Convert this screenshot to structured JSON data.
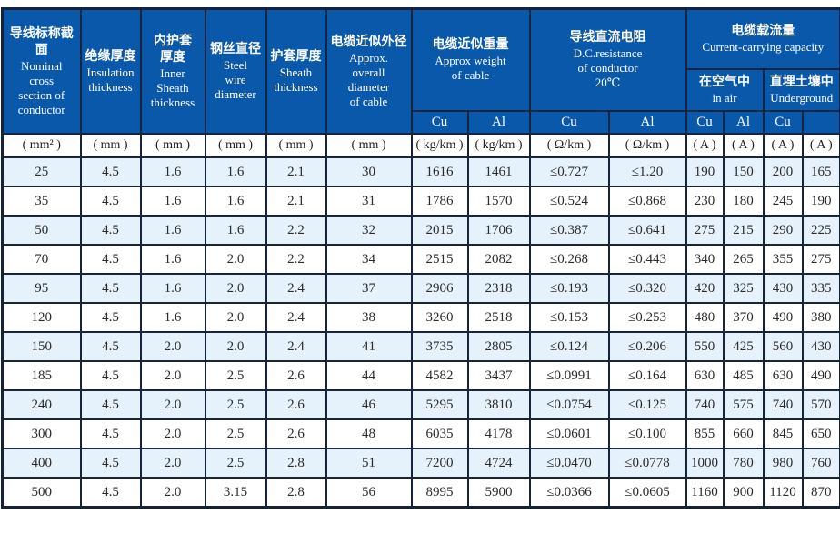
{
  "table": {
    "columns": [
      {
        "zh": "导线标称截面",
        "en": "Nominal\ncross\nsection of\nconductor"
      },
      {
        "zh": "绝缘厚度",
        "en": "Insulation\nthickness"
      },
      {
        "zh": "内护套\n厚度",
        "en": "Inner\nSheath\nthickness"
      },
      {
        "zh": "钢丝直径",
        "en": "Steel\nwire\ndiameter"
      },
      {
        "zh": "护套厚度",
        "en": "Sheath\nthickness"
      },
      {
        "zh": "电缆近似外径",
        "en": "Approx.\noverall\ndiameter\nof cable"
      }
    ],
    "groups": {
      "weight": {
        "zh": "电缆近似重量",
        "en": "Approx weight\nof cable"
      },
      "resistance": {
        "zh": "导线直流电阻",
        "en": "D.C.resistance\nof conductor\n20℃"
      },
      "capacity": {
        "zh": "电缆载流量",
        "en": "Current-carrying capacity"
      },
      "in_air": {
        "zh": "在空气中",
        "en": "in air"
      },
      "underground": {
        "zh": "直埋土壤中",
        "en": "Underground"
      }
    },
    "material_row": [
      "Cu",
      "Al",
      "Cu",
      "Al",
      "Cu",
      "Al",
      "Cu",
      ""
    ],
    "units_row": [
      "( mm² )",
      "( mm )",
      "( mm )",
      "( mm )",
      "( mm )",
      "( mm )",
      "( kg/km )",
      "( kg/km )",
      "( Ω/km )",
      "( Ω/km )",
      "( A )",
      "( A )",
      "( A )",
      "( A )"
    ],
    "rows": [
      [
        "25",
        "4.5",
        "1.6",
        "1.6",
        "2.1",
        "30",
        "1616",
        "1461",
        "≤0.727",
        "≤1.20",
        "190",
        "150",
        "200",
        "165"
      ],
      [
        "35",
        "4.5",
        "1.6",
        "1.6",
        "2.1",
        "31",
        "1786",
        "1570",
        "≤0.524",
        "≤0.868",
        "230",
        "180",
        "245",
        "190"
      ],
      [
        "50",
        "4.5",
        "1.6",
        "1.6",
        "2.2",
        "32",
        "2015",
        "1706",
        "≤0.387",
        "≤0.641",
        "275",
        "215",
        "290",
        "225"
      ],
      [
        "70",
        "4.5",
        "1.6",
        "2.0",
        "2.2",
        "34",
        "2515",
        "2082",
        "≤0.268",
        "≤0.443",
        "340",
        "265",
        "355",
        "275"
      ],
      [
        "95",
        "4.5",
        "1.6",
        "2.0",
        "2.4",
        "37",
        "2906",
        "2318",
        "≤0.193",
        "≤0.320",
        "420",
        "325",
        "430",
        "335"
      ],
      [
        "120",
        "4.5",
        "1.6",
        "2.0",
        "2.4",
        "38",
        "3260",
        "2518",
        "≤0.153",
        "≤0.253",
        "480",
        "370",
        "490",
        "380"
      ],
      [
        "150",
        "4.5",
        "2.0",
        "2.0",
        "2.4",
        "41",
        "3735",
        "2805",
        "≤0.124",
        "≤0.206",
        "550",
        "425",
        "560",
        "430"
      ],
      [
        "185",
        "4.5",
        "2.0",
        "2.5",
        "2.6",
        "44",
        "4582",
        "3437",
        "≤0.0991",
        "≤0.164",
        "630",
        "485",
        "630",
        "490"
      ],
      [
        "240",
        "4.5",
        "2.0",
        "2.5",
        "2.6",
        "46",
        "5295",
        "3810",
        "≤0.0754",
        "≤0.125",
        "740",
        "575",
        "740",
        "570"
      ],
      [
        "300",
        "4.5",
        "2.0",
        "2.5",
        "2.6",
        "48",
        "6035",
        "4178",
        "≤0.0601",
        "≤0.100",
        "855",
        "660",
        "845",
        "650"
      ],
      [
        "400",
        "4.5",
        "2.0",
        "2.5",
        "2.8",
        "51",
        "7200",
        "4724",
        "≤0.0470",
        "≤0.0778",
        "1000",
        "780",
        "980",
        "760"
      ],
      [
        "500",
        "4.5",
        "2.0",
        "3.15",
        "2.8",
        "56",
        "8995",
        "5900",
        "≤0.0366",
        "≤0.0605",
        "1160",
        "900",
        "1120",
        "870"
      ]
    ]
  }
}
